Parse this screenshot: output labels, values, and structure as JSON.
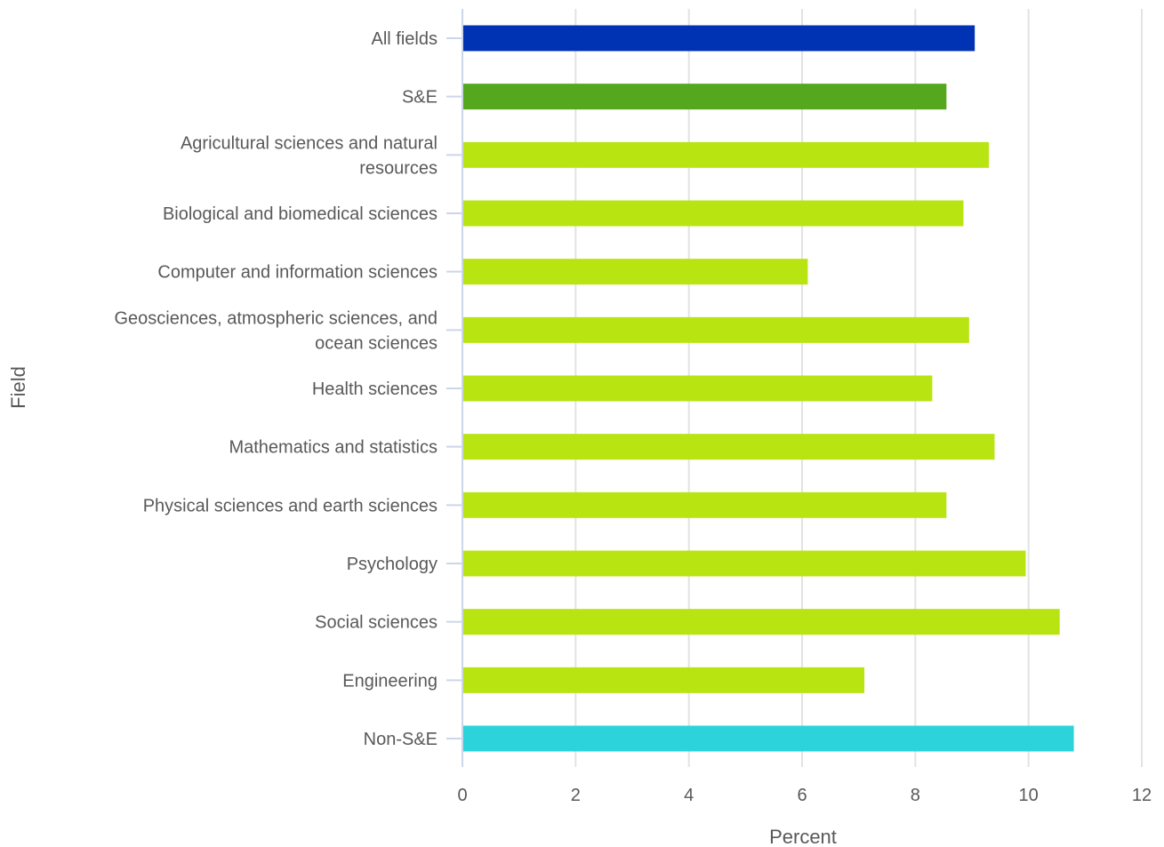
{
  "chart_data": {
    "type": "bar",
    "orientation": "horizontal",
    "xlabel": "Percent",
    "ylabel": "Field",
    "xlim": [
      0,
      12
    ],
    "x_ticks": [
      0,
      2,
      4,
      6,
      8,
      10,
      12
    ],
    "grid": true,
    "categories": [
      "All fields",
      "S&E",
      "Agricultural sciences and natural resources",
      "Biological and biomedical sciences",
      "Computer and information sciences",
      "Geosciences, atmospheric sciences, and ocean sciences",
      "Health sciences",
      "Mathematics and statistics",
      "Physical sciences and earth sciences",
      "Psychology",
      "Social sciences",
      "Engineering",
      "Non-S&E"
    ],
    "values": [
      9.05,
      8.55,
      9.3,
      8.85,
      6.1,
      8.95,
      8.3,
      9.4,
      8.55,
      9.95,
      10.55,
      7.1,
      10.8
    ],
    "colors": [
      "#0033b4",
      "#55a81e",
      "#b8e412",
      "#b8e412",
      "#b8e412",
      "#b8e412",
      "#b8e412",
      "#b8e412",
      "#b8e412",
      "#b8e412",
      "#b8e412",
      "#b8e412",
      "#2dd3da"
    ]
  }
}
